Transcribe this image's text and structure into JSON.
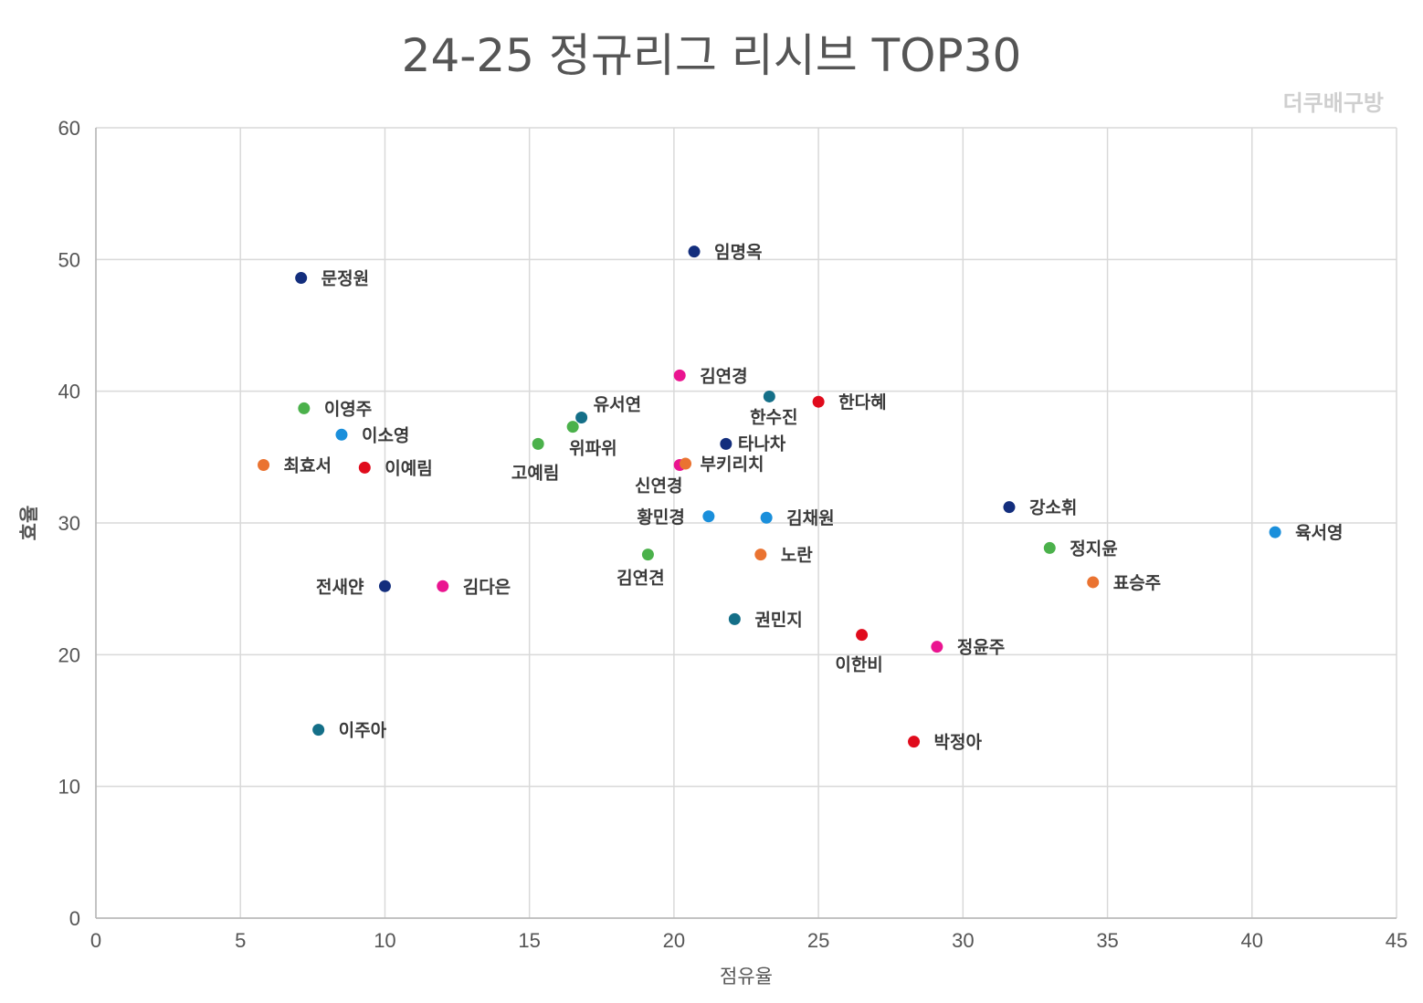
{
  "watermark": "더쿠배구방",
  "chart_data": {
    "type": "scatter",
    "title": "24-25 정규리그 리시브 TOP30",
    "xlabel": "점유율",
    "ylabel": "효율",
    "xlim": [
      0,
      45
    ],
    "ylim": [
      0,
      60
    ],
    "xticks": [
      0,
      5,
      10,
      15,
      20,
      25,
      30,
      35,
      40,
      45
    ],
    "yticks": [
      0,
      10,
      20,
      30,
      40,
      50,
      60
    ],
    "grid": true,
    "points": [
      {
        "label": "문정원",
        "x": 7.1,
        "y": 48.6,
        "color": "#132e7d"
      },
      {
        "label": "임명옥",
        "x": 20.7,
        "y": 50.6,
        "color": "#132e7d"
      },
      {
        "label": "김연경",
        "x": 20.2,
        "y": 41.2,
        "color": "#ea1490"
      },
      {
        "label": "한수진",
        "x": 23.3,
        "y": 39.6,
        "color": "#146f88"
      },
      {
        "label": "한다혜",
        "x": 25.0,
        "y": 39.2,
        "color": "#e00b1c"
      },
      {
        "label": "이영주",
        "x": 7.2,
        "y": 38.7,
        "color": "#4bb14b"
      },
      {
        "label": "위파위",
        "x": 16.5,
        "y": 37.3,
        "color": "#4bb14b"
      },
      {
        "label": "유서연",
        "x": 16.8,
        "y": 38.0,
        "color": "#146f88"
      },
      {
        "label": "이소영",
        "x": 8.5,
        "y": 36.7,
        "color": "#1a8fdb"
      },
      {
        "label": "고예림",
        "x": 15.3,
        "y": 36.0,
        "color": "#4bb14b"
      },
      {
        "label": "타나차",
        "x": 21.8,
        "y": 36.0,
        "color": "#132e7d"
      },
      {
        "label": "최효서",
        "x": 5.8,
        "y": 34.4,
        "color": "#ea7331"
      },
      {
        "label": "이예림",
        "x": 9.3,
        "y": 34.2,
        "color": "#e00b1c"
      },
      {
        "label": "신연경",
        "x": 20.2,
        "y": 34.4,
        "color": "#ea1490"
      },
      {
        "label": "부키리치",
        "x": 20.4,
        "y": 34.5,
        "color": "#ea7331"
      },
      {
        "label": "강소휘",
        "x": 31.6,
        "y": 31.2,
        "color": "#132e7d"
      },
      {
        "label": "황민경",
        "x": 21.2,
        "y": 30.5,
        "color": "#1a8fdb"
      },
      {
        "label": "김채원",
        "x": 23.2,
        "y": 30.4,
        "color": "#1a8fdb"
      },
      {
        "label": "육서영",
        "x": 40.8,
        "y": 29.3,
        "color": "#1a8fdb"
      },
      {
        "label": "정지윤",
        "x": 33.0,
        "y": 28.1,
        "color": "#4bb14b"
      },
      {
        "label": "김연견",
        "x": 19.1,
        "y": 27.6,
        "color": "#4bb14b"
      },
      {
        "label": "노란",
        "x": 23.0,
        "y": 27.6,
        "color": "#ea7331"
      },
      {
        "label": "표승주",
        "x": 34.5,
        "y": 25.5,
        "color": "#ea7331"
      },
      {
        "label": "전새얀",
        "x": 10.0,
        "y": 25.2,
        "color": "#132e7d"
      },
      {
        "label": "김다은",
        "x": 12.0,
        "y": 25.2,
        "color": "#ea1490"
      },
      {
        "label": "권민지",
        "x": 22.1,
        "y": 22.7,
        "color": "#146f88"
      },
      {
        "label": "이한비",
        "x": 26.5,
        "y": 21.5,
        "color": "#e00b1c"
      },
      {
        "label": "정윤주",
        "x": 29.1,
        "y": 20.6,
        "color": "#ea1490"
      },
      {
        "label": "이주아",
        "x": 7.7,
        "y": 14.3,
        "color": "#146f88"
      },
      {
        "label": "박정아",
        "x": 28.3,
        "y": 13.4,
        "color": "#e00b1c"
      }
    ]
  }
}
